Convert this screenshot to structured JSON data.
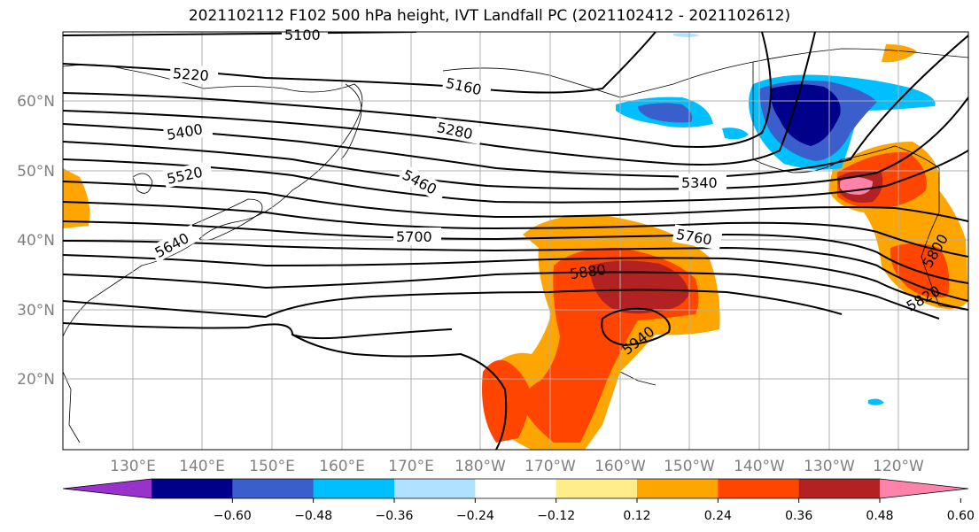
{
  "title": "2021102112 F102 500 hPa height, IVT Landfall PC (2021102412 - 2021102612)",
  "lon_ticks": [
    "130°E",
    "140°E",
    "150°E",
    "160°E",
    "170°E",
    "180°W",
    "170°W",
    "160°W",
    "150°W",
    "140°W",
    "130°W",
    "120°W"
  ],
  "lat_ticks": [
    "60°N",
    "50°N",
    "40°N",
    "30°N",
    "20°N"
  ],
  "contour_labels": [
    "5100",
    "5160",
    "5220",
    "5280",
    "5340",
    "5400",
    "5460",
    "5520",
    "5640",
    "5700",
    "5760",
    "5800",
    "5820",
    "5880",
    "5940"
  ],
  "colorbar": {
    "ticks": [
      "−0.60",
      "−0.48",
      "−0.36",
      "−0.24",
      "−0.12",
      "0.12",
      "0.24",
      "0.36",
      "0.48",
      "0.60"
    ],
    "colors": [
      "#9932cc",
      "#00008b",
      "#3a5fcd",
      "#00bfff",
      "#b0e2ff",
      "#ffffff",
      "#ffec8b",
      "#ffa500",
      "#ff4500",
      "#b22222",
      "#ff82ab"
    ]
  }
}
